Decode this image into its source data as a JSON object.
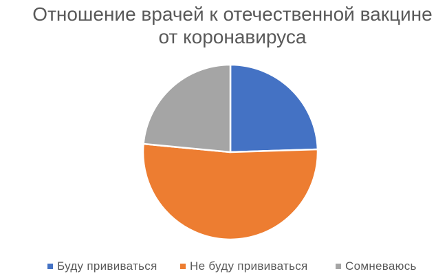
{
  "title": {
    "lines": [
      "Отношение врачей к отечественной вакцине",
      "от коронавируса"
    ]
  },
  "colors": {
    "background": "#FFFFFF",
    "title_text": "#595959",
    "legend_text": "#595959",
    "slice_border": "#FFFFFF"
  },
  "chart_data": {
    "type": "pie",
    "title": "Отношение врачей к отечественной вакцине от коронавируса",
    "unit": "percent",
    "start_angle_deg": 0,
    "direction": "clockwise",
    "legend_position": "bottom",
    "grid": false,
    "slices": [
      {
        "label": "Буду прививаться",
        "value": 24.5,
        "color": "#4472C4"
      },
      {
        "label": "Не буду прививаться",
        "value": 52,
        "color": "#ED7D31"
      },
      {
        "label": "Сомневаюсь",
        "value": 23.5,
        "color": "#A5A5A5"
      }
    ]
  }
}
